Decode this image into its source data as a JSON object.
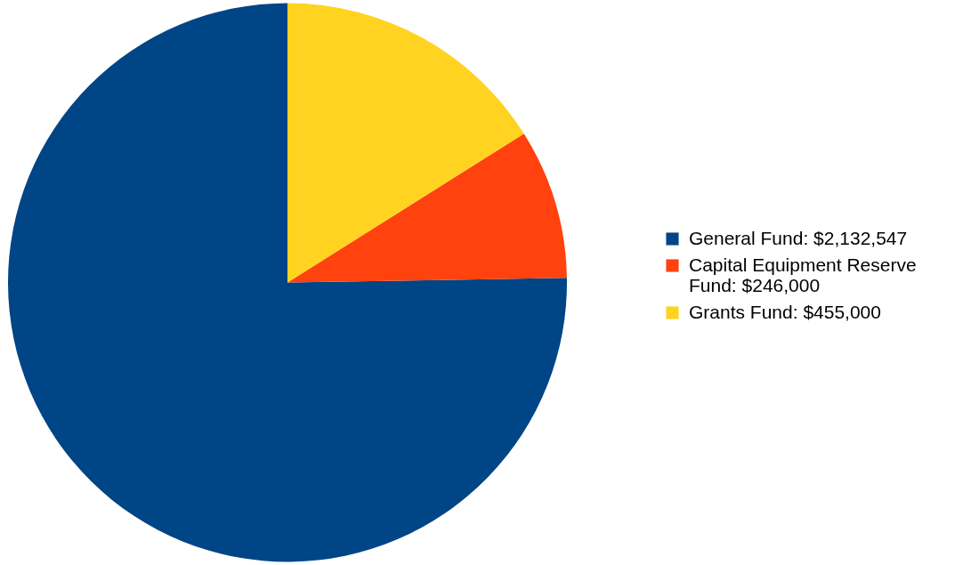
{
  "chart_data": {
    "type": "pie",
    "categories": [
      "General Fund: $2,132,547",
      "Capital Equipment Reserve Fund: $246,000",
      "Grants Fund: $455,000"
    ],
    "values": [
      2132547,
      246000,
      455000
    ],
    "colors": [
      "#004586",
      "#ff420e",
      "#ffd320"
    ],
    "legend": "right"
  }
}
